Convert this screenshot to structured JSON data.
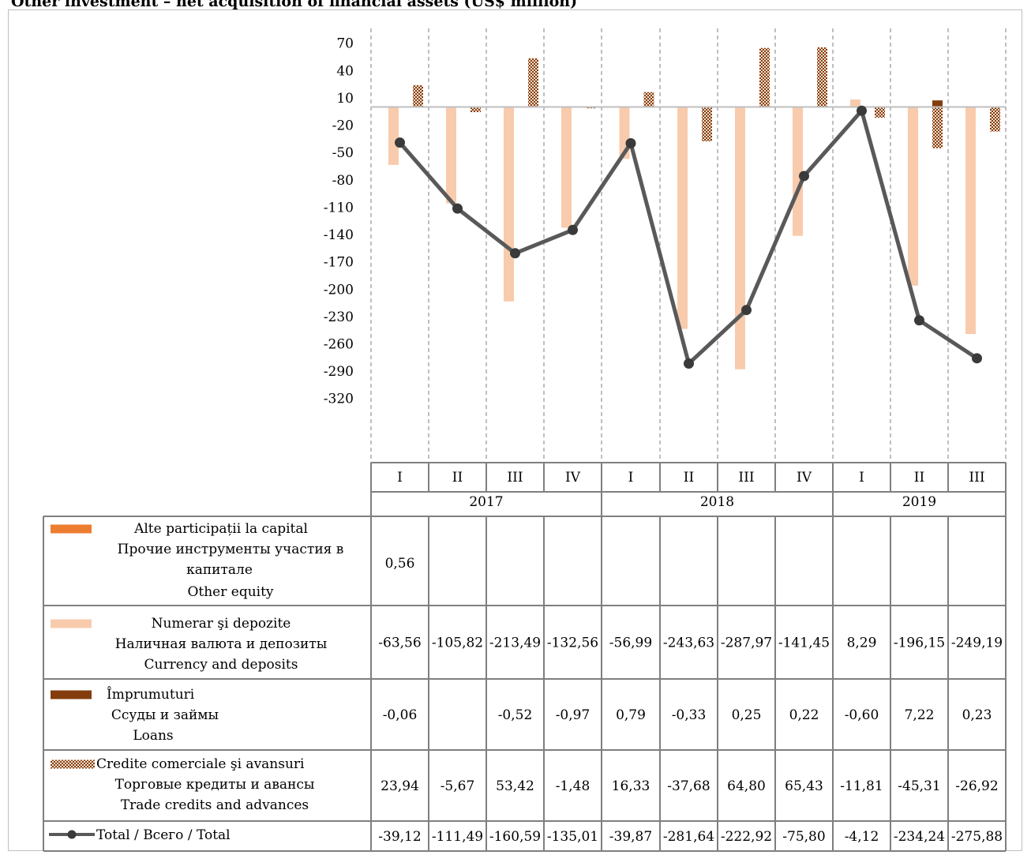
{
  "title": "Other investment – net acquisition of financial assets (US$ million)",
  "chart_data": {
    "type": "bar",
    "categories": [
      "I",
      "II",
      "III",
      "IV",
      "I",
      "II",
      "III",
      "IV",
      "I",
      "II",
      "III"
    ],
    "years": [
      {
        "label": "2017",
        "span": 4
      },
      {
        "label": "2018",
        "span": 4
      },
      {
        "label": "2019",
        "span": 3
      }
    ],
    "ylim": [
      -320,
      70
    ],
    "yticks": [
      70,
      40,
      10,
      -20,
      -50,
      -80,
      -110,
      -140,
      -170,
      -200,
      -230,
      -260,
      -290,
      -320
    ],
    "grid": "vertical dashed between categories",
    "series": [
      {
        "key": "equity",
        "kind": "bar",
        "color": "#ed7d31",
        "pattern": "solid",
        "labels": [
          "Alte participații la capital",
          "Прочие инструменты участия в",
          "капитале",
          "Other equity"
        ],
        "values": [
          0.56,
          null,
          null,
          null,
          null,
          null,
          null,
          null,
          null,
          null,
          null
        ],
        "display": [
          "0,56",
          "",
          "",
          "",
          "",
          "",
          "",
          "",
          "",
          "",
          ""
        ]
      },
      {
        "key": "currency",
        "kind": "bar",
        "color": "#f8cbad",
        "pattern": "solid",
        "labels": [
          "Numerar şi depozite",
          "Наличная валюта и депозиты",
          "Currency and deposits"
        ],
        "values": [
          -63.56,
          -105.82,
          -213.49,
          -132.56,
          -56.99,
          -243.63,
          -287.97,
          -141.45,
          8.29,
          -196.15,
          -249.19
        ],
        "display": [
          "-63,56",
          "-105,82",
          "-213,49",
          "-132,56",
          "-56,99",
          "-243,63",
          "-287,97",
          "-141,45",
          "8,29",
          "-196,15",
          "-249,19"
        ]
      },
      {
        "key": "loans",
        "kind": "bar",
        "color": "#843c0c",
        "pattern": "solid",
        "labels": [
          "Împrumuturi",
          "Ссуды и займы",
          "Loans"
        ],
        "values": [
          -0.06,
          null,
          -0.52,
          -0.97,
          0.79,
          -0.33,
          0.25,
          0.22,
          -0.6,
          7.22,
          0.23
        ],
        "display": [
          "-0,06",
          "",
          "-0,52",
          "-0,97",
          "0,79",
          "-0,33",
          "0,25",
          "0,22",
          "-0,60",
          "7,22",
          "0,23"
        ]
      },
      {
        "key": "trade",
        "kind": "bar",
        "color": "#843c0c",
        "pattern": "checker",
        "labels": [
          "Credite comerciale şi avansuri",
          "Торговые кредиты и авансы",
          "Trade credits and advances"
        ],
        "values": [
          23.94,
          -5.67,
          53.42,
          -1.48,
          16.33,
          -37.68,
          64.8,
          65.43,
          -11.81,
          -45.31,
          -26.92
        ],
        "display": [
          "23,94",
          "-5,67",
          "53,42",
          "-1,48",
          "16,33",
          "-37,68",
          "64,80",
          "65,43",
          "-11,81",
          "-45,31",
          "-26,92"
        ]
      },
      {
        "key": "total",
        "kind": "line",
        "color": "#595959",
        "labels": [
          "Total / Всего / Total"
        ],
        "values": [
          -39.12,
          -111.49,
          -160.59,
          -135.01,
          -39.87,
          -281.64,
          -222.92,
          -75.8,
          -4.12,
          -234.24,
          -275.88
        ],
        "display": [
          "-39,12",
          "-111,49",
          "-160,59",
          "-135,01",
          "-39,87",
          "-281,64",
          "-222,92",
          "-75,80",
          "-4,12",
          "-234,24",
          "-275,88"
        ]
      }
    ]
  }
}
